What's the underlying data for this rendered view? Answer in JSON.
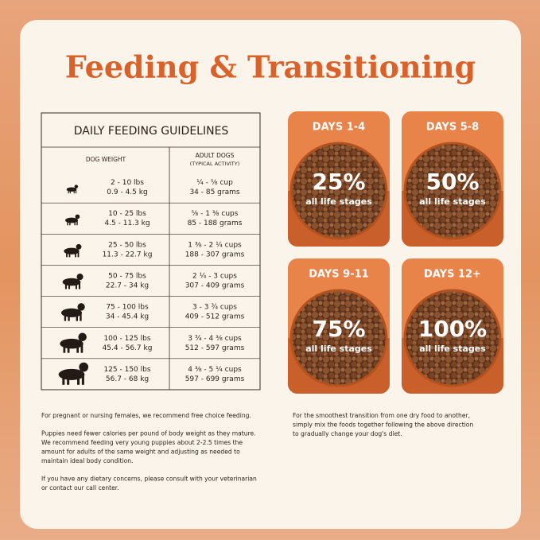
{
  "title": "Feeding & Transitioning",
  "table": {
    "title": "DAILY FEEDING GUIDELINES",
    "header": {
      "weight": "DOG WEIGHT",
      "adult": "ADULT DOGS",
      "activity": "(TYPICAL ACTIVITY)"
    },
    "rows": [
      [
        "2 - 10 lbs",
        "0.9 - 4.5 kg",
        "¼ - ⅝ cup",
        "34 - 85 grams"
      ],
      [
        "10 - 25 lbs",
        "4.5 - 11.3 kg",
        "⅝ - 1 ⅜ cups",
        "85 - 188 grams"
      ],
      [
        "25 - 50 lbs",
        "11.3 - 22.7 kg",
        "1 ⅜ - 2 ¼ cups",
        "188 - 307 grams"
      ],
      [
        "50 - 75 lbs",
        "22.7 - 34 kg",
        "2 ¼ - 3 cups",
        "307 - 409 grams"
      ],
      [
        "75 - 100 lbs",
        "34 - 45.4 kg",
        "3 - 3 ¾ cups",
        "409 - 512 grams"
      ],
      [
        "100 - 125 lbs",
        "45.4 - 56.7 kg",
        "3 ¾ - 4 ⅜ cups",
        "512 - 597 grams"
      ],
      [
        "125 - 150 lbs",
        "56.7 - 68 kg",
        "4 ⅜ - 5 ¼ cups",
        "597 - 699 grams"
      ]
    ]
  },
  "transition": [
    {
      "label": "DAYS 1-4",
      "percent": "25%",
      "note": "all life stages"
    },
    {
      "label": "DAYS 5-8",
      "percent": "50%",
      "note": "all life stages"
    },
    {
      "label": "DAYS 9-11",
      "percent": "75%",
      "note": "all life stages"
    },
    {
      "label": "DAYS 12+",
      "percent": "100%",
      "note": "all life stages"
    }
  ],
  "notes": {
    "left": [
      [
        "For pregnant or nursing females, we recommend free choice feeding."
      ],
      [
        "Puppies need fewer calories per pound of body weight as they mature.",
        "We recommend feeding very young puppies about 2-2.5 times the",
        "amount for adults of the same weight and adjusting as needed to",
        "maintain ideal body condition."
      ],
      [
        "If you have any dietary concerns, please consult with your veterinarian",
        "or contact our call center."
      ]
    ],
    "right": [
      [
        "For the smoothest transition from one dry food to another,",
        "simply mix the foods together following the above direction",
        "to gradually change your dog's diet."
      ]
    ]
  }
}
